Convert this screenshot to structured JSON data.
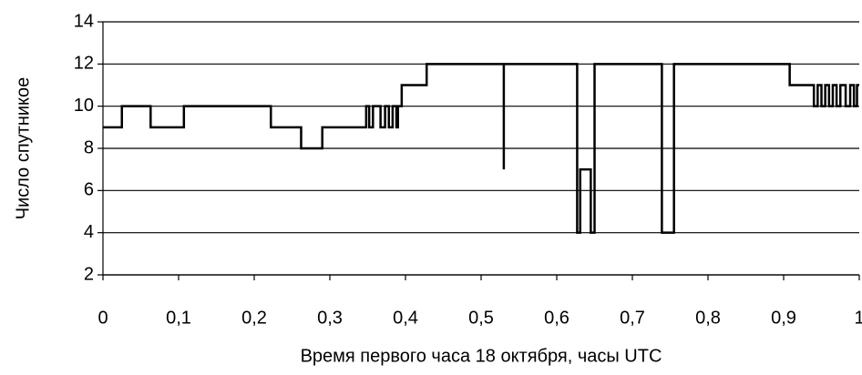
{
  "chart_data": {
    "type": "line",
    "step": true,
    "xlabel": "Время первого часа 18 октября, часы UTC",
    "ylabel": "Число спутникое",
    "x": [
      0,
      0.025,
      0.025,
      0.063,
      0.063,
      0.107,
      0.107,
      0.222,
      0.222,
      0.262,
      0.262,
      0.29,
      0.29,
      0.348,
      0.348,
      0.352,
      0.352,
      0.357,
      0.357,
      0.367,
      0.367,
      0.373,
      0.373,
      0.378,
      0.378,
      0.383,
      0.383,
      0.388,
      0.388,
      0.39,
      0.39,
      0.395,
      0.395,
      0.428,
      0.428,
      0.53,
      0.53,
      0.53,
      0.627,
      0.627,
      0.631,
      0.631,
      0.645,
      0.645,
      0.65,
      0.65,
      0.739,
      0.739,
      0.755,
      0.755,
      0.908,
      0.908,
      0.94,
      0.94,
      0.945,
      0.945,
      0.95,
      0.95,
      0.955,
      0.955,
      0.96,
      0.96,
      0.965,
      0.965,
      0.97,
      0.97,
      0.975,
      0.975,
      0.982,
      0.982,
      0.988,
      0.988,
      0.993,
      0.993,
      0.997,
      0.997,
      1
    ],
    "values": [
      9,
      9,
      10,
      10,
      9,
      9,
      10,
      10,
      9,
      9,
      8,
      8,
      9,
      9,
      10,
      10,
      9,
      9,
      10,
      10,
      9,
      9,
      10,
      10,
      9,
      9,
      10,
      10,
      9,
      9,
      10,
      10,
      11,
      11,
      12,
      12,
      7,
      12,
      12,
      4,
      4,
      7,
      7,
      4,
      4,
      12,
      12,
      4,
      4,
      12,
      12,
      11,
      11,
      10,
      10,
      11,
      11,
      10,
      10,
      11,
      11,
      10,
      10,
      11,
      11,
      10,
      10,
      11,
      11,
      10,
      10,
      11,
      11,
      10,
      10,
      11,
      11
    ],
    "color": "#000000",
    "xlim": [
      0,
      1
    ],
    "xticks": [
      0,
      {
        "value": 0.1,
        "label": "0,1"
      },
      {
        "value": 0.2,
        "label": "0,2"
      },
      {
        "value": 0.3,
        "label": "0,3"
      },
      {
        "value": 0.4,
        "label": "0,4"
      },
      {
        "value": 0.5,
        "label": "0,5"
      },
      {
        "value": 0.6,
        "label": "0,6"
      },
      {
        "value": 0.7,
        "label": "0,7"
      },
      {
        "value": 0.8,
        "label": "0,8"
      },
      {
        "value": 0.9,
        "label": "0,9"
      },
      1
    ],
    "ylim": [
      2,
      14
    ],
    "yticks": [
      2,
      4,
      6,
      8,
      10,
      12,
      14
    ],
    "grid": true
  }
}
